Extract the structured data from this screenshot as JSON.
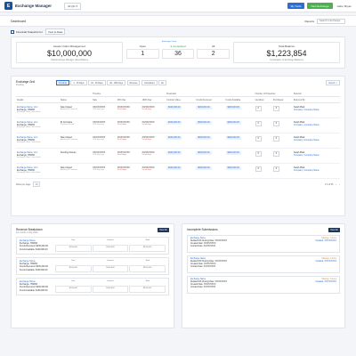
{
  "header": {
    "logo": "E",
    "title": "Exchange Manager",
    "selector": "All Qls",
    "btn_tools": "My Tools",
    "btn_new": "New Exchange",
    "user": "Hello, Bryan"
  },
  "breadcrumb": {
    "title": "Dashboard",
    "reports_label": "Reports",
    "search_placeholder": "Search in Exchange"
  },
  "snapshot": {
    "label": "Financial Snapshot for",
    "period": "Year to Date"
  },
  "stats": {
    "aum": {
      "label": "Assets Under Management",
      "value": "$10,000,000",
      "sub": "Total Exchange Manager Value Balance"
    },
    "status_tag": "Exchange Count",
    "open": {
      "label": "Open",
      "value": "1"
    },
    "completed": {
      "label": "Completed",
      "value": "36"
    },
    "all": {
      "label": "All",
      "value": "2"
    },
    "balance": {
      "label": "Total Balance",
      "value": "$1,223,854",
      "sub": "Combination of Exchange Balances"
    }
  },
  "table": {
    "title": "Exchange Grid",
    "subtitle": "Pending",
    "chips": [
      "Pending",
      "1 - 15 Days",
      "16 - 45 Days",
      "46 - 180 Days",
      "Reverse",
      "Completed",
      "All"
    ],
    "export": "Export",
    "group_headers": {
      "timeline": "Timeline",
      "financials": "Financials",
      "properties": "Number of Properties",
      "referral": "Referral"
    },
    "columns": [
      "Details",
      "Status",
      "Sale",
      "45th Day",
      "180th Day",
      "Contract Value",
      "Funds Received",
      "Funds Available",
      "Identified",
      "Purchased",
      "Referred By"
    ],
    "rows": [
      {
        "name": "Exchange Name, LLC",
        "sub1": "Exchange: 789456",
        "sub2": "Exchange Officer: Jane Smith",
        "status": "Sale Closed",
        "status_sub": "Awaiting ID Purchase",
        "d1": "XX/XX/XXXX",
        "d1s": "XXX days ago",
        "d2": "XX/XX/XXXX",
        "d2s": "Xx left days",
        "d3": "XX/XX/XXXX",
        "d3s": "Xx left days",
        "v1": "$000,000.00",
        "v2": "$000,000.00",
        "v3": "$000,000.00",
        "p1": "0",
        "p2": "0",
        "ref": "Sarah Plaid",
        "ref_sub": "Company: Company Name"
      },
      {
        "name": "Exchange Name, LLC",
        "sub1": "Exchange: 789456",
        "sub2": "Exchange Officer: Jane Smith",
        "status": "ID Complete",
        "status_sub": "Purchase Closed",
        "d1": "XX/XX/XXXX",
        "d1s": "XXX days ago",
        "d2": "XX/XX/XXXX",
        "d2s": "Xx left days",
        "d3": "XX/XX/XXXX",
        "d3s": "Xx left days",
        "v1": "$000,000.00",
        "v2": "$000,000.00",
        "v3": "$000,000.00",
        "p1": "0",
        "p2": "0",
        "ref": "Sarah Plaid",
        "ref_sub": "Company: Company Name"
      },
      {
        "name": "Exchange Name, LLC",
        "sub1": "Exchange: 789456",
        "sub2": "Exchange Officer: Jane Smith",
        "status": "Sale Closed",
        "status_sub": "Awaiting ID Purchase",
        "d1": "XX/XX/XXXX",
        "d1s": "XXX days ago",
        "d2": "XX/XX/XXXX",
        "d2s": "Xx left days",
        "d3": "XX/XX/XXXX",
        "d3s": "Xx left days",
        "v1": "$000,000.00",
        "v2": "$000,000.00",
        "v3": "$000,000.00",
        "p1": "0",
        "p2": "0",
        "ref": "Sarah Plaid",
        "ref_sub": "Company: Company Name"
      },
      {
        "name": "Exchange Name, LLC",
        "sub1": "Exchange: 789456",
        "sub2": "Exchange Officer: Jane Smith",
        "status": "Pending Closure",
        "status_sub": "",
        "d1": "XX/XX/XXXX",
        "d1s": "XXX days ago",
        "d2": "XX/XX/XXXX",
        "d2s": "Xx left days",
        "d3": "XX/XX/XXXX",
        "d3s": "Xx left days",
        "v1": "$000,000.00",
        "v2": "$000,000.00",
        "v3": "$000,000.00",
        "p1": "0",
        "p2": "0",
        "ref": "Sarah Plaid",
        "ref_sub": "Company: Company Name"
      },
      {
        "name": "Exchange Name, LLC",
        "sub1": "Exchange: 789456",
        "sub2": "Exchange Officer: Jane Smith",
        "status": "Sale Closed",
        "status_sub": "Awaiting ID Purchase",
        "d1": "XX/XX/XXXX",
        "d1s": "XXX days ago",
        "d2": "XX/XX/XXXX",
        "d2s": "Xx left days",
        "d3": "XX/XX/XXXX",
        "d3s": "Xx left days",
        "v1": "$000,000.00",
        "v2": "$000,000.00",
        "v3": "$000,000.00",
        "p1": "0",
        "p2": "0",
        "ref": "Sarah Plaid",
        "ref_sub": "Company: Company Name"
      }
    ],
    "pagination": {
      "rows_label": "Rows per page:",
      "rows_value": "10",
      "range": "1-5 of 35"
    }
  },
  "revenue": {
    "title": "Revenue Breakdown",
    "subtitle": "For month of July 2020",
    "view_btn": "View All",
    "items": [
      {
        "name": "Exchange Name",
        "l1": "Exchange: 789456",
        "l2": "Funds Received: $100,000.00",
        "l3": "Funds Available: $100,000.00",
        "h": [
          "Fee",
          "Interest",
          "Total"
        ],
        "v": [
          "$100,000",
          "$100,000",
          "$100,000"
        ]
      },
      {
        "name": "Exchange Name",
        "l1": "Exchange: 789456",
        "l2": "Funds Received: $100,000.00",
        "l3": "Funds Available: $100,000.00",
        "h": [
          "Fee",
          "Interest",
          "Total"
        ],
        "v": [
          "$100,000",
          "$100,000",
          "$100,000"
        ]
      },
      {
        "name": "Exchange Name",
        "l1": "Exchange: 789456",
        "l2": "Funds Received: $100,000.00",
        "l3": "Funds Available: $100,000.00",
        "h": [
          "Fee",
          "Interest",
          "Total"
        ],
        "v": [
          "$100,000",
          "$100,000",
          "$100,000"
        ]
      }
    ]
  },
  "incomplete": {
    "title": "Incomplete Submissions",
    "view_btn": "View All",
    "items": [
      {
        "name": "Exchange Name",
        "l1": "Related IRS Closing Date: XX/XX/XXXX",
        "l2": "Created Date: XX/XX/XXXX",
        "l3": "Contact Date: XX/XX/XXXX",
        "s1": "Missing: 4 items",
        "s2": "Updated: XX/XX/XXXX"
      },
      {
        "name": "Exchange Name",
        "l1": "Related IRS Closing Date: XX/XX/XXXX",
        "l2": "Created Date: XX/XX/XXXX",
        "l3": "Contact Date: XX/XX/XXXX",
        "s1": "Missing: 4 items",
        "s2": "Updated: XX/XX/XXXX"
      },
      {
        "name": "Exchange Name",
        "l1": "Related IRS Closing Date: XX/XX/XXXX",
        "l2": "Created Date: XX/XX/XXXX",
        "l3": "Contact Date: XX/XX/XXXX",
        "s1": "Missing: 4 items",
        "s2": "Updated: XX/XX/XXXX"
      }
    ]
  }
}
